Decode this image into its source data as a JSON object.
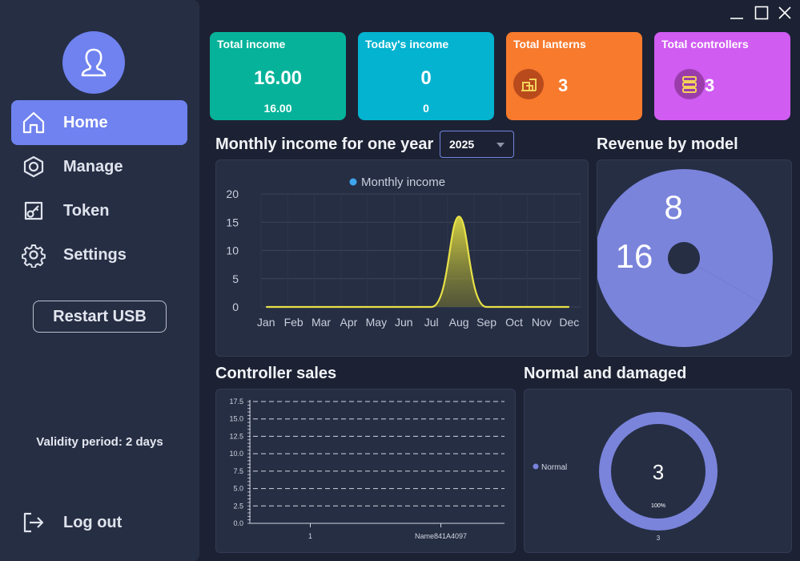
{
  "sidebar": {
    "nav": [
      {
        "label": "Home",
        "icon": "home-icon",
        "active": true
      },
      {
        "label": "Manage",
        "icon": "manage-icon"
      },
      {
        "label": "Token",
        "icon": "token-icon"
      },
      {
        "label": "Settings",
        "icon": "gear-icon"
      }
    ],
    "restart_label": "Restart USB",
    "validity": "Validity period: 2 days",
    "logout_label": "Log out"
  },
  "cards": {
    "total_income": {
      "title": "Total income",
      "value": "16.00",
      "sub": "16.00",
      "color": "#06b39a"
    },
    "today_income": {
      "title": "Today's income",
      "value": "0",
      "sub": "0",
      "color": "#03b3d0"
    },
    "total_lanterns": {
      "title": "Total lanterns",
      "value": "3",
      "color": "#f77a2d"
    },
    "total_controllers": {
      "title": "Total controllers",
      "value": "3",
      "color": "#d05cf2"
    }
  },
  "monthly": {
    "title": "Monthly income for one year",
    "year": "2025"
  },
  "revenue": {
    "title": "Revenue by model"
  },
  "controller_sales": {
    "title": "Controller sales"
  },
  "normal_damaged": {
    "title": "Normal and damaged"
  },
  "chart_data": [
    {
      "type": "area",
      "legend": "Monthly income",
      "categories": [
        "Jan",
        "Feb",
        "Mar",
        "Apr",
        "May",
        "Jun",
        "Jul",
        "Aug",
        "Sep",
        "Oct",
        "Nov",
        "Dec"
      ],
      "series": [
        {
          "name": "Monthly income",
          "values": [
            0,
            0,
            0,
            0,
            0,
            0,
            0,
            16,
            0,
            0,
            0,
            0
          ]
        }
      ],
      "yticks": [
        "0",
        "5",
        "10",
        "15",
        "20"
      ],
      "ylim": [
        0,
        20
      ],
      "color": "#e8e247"
    },
    {
      "type": "pie",
      "labels": [
        "8",
        "16"
      ],
      "values": [
        8,
        16
      ],
      "color": "#7a84db"
    },
    {
      "type": "bar",
      "categories": [
        "1",
        "Name841A4097"
      ],
      "values": [
        0,
        0
      ],
      "yticks": [
        "0.0",
        "2.5",
        "5.0",
        "7.5",
        "10.0",
        "12.5",
        "15.0",
        "17.5"
      ],
      "ylim": [
        0,
        17.5
      ]
    },
    {
      "type": "pie",
      "legend": "Normal",
      "center_value": "3",
      "percent_label": "100%",
      "bottom_label": "3",
      "color": "#7a84db"
    }
  ]
}
